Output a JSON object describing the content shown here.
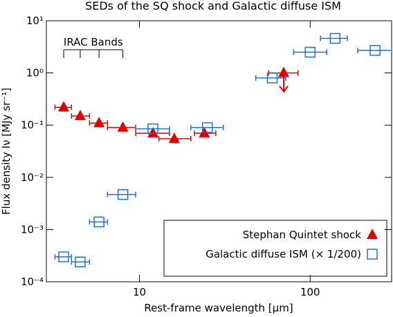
{
  "chart_data": {
    "type": "scatter",
    "title": "SEDs of the SQ shock and Galactic diffuse ISM",
    "x_label": "Rest-frame wavelength [μm]",
    "y_label": "Flux density Iν [MJy sr⁻¹]",
    "annotation": "IRAC Bands",
    "log_x": true,
    "log_y": true,
    "xlim": [
      2.85,
      300
    ],
    "ylim": [
      0.0001,
      10
    ],
    "xticks": [
      10,
      100
    ],
    "yticks": [
      {
        "value": 0.0001,
        "label": "10⁻⁴"
      },
      {
        "value": 0.001,
        "label": "10⁻³"
      },
      {
        "value": 0.01,
        "label": "10⁻²"
      },
      {
        "value": 0.1,
        "label": "10⁻¹"
      },
      {
        "value": 1,
        "label": "10⁰"
      },
      {
        "value": 10,
        "label": "10¹"
      }
    ],
    "legend": "lower right",
    "series": [
      {
        "name": "Stephan Quintet shock",
        "color": "#e00000",
        "marker": "triangle",
        "x": [
          3.6,
          4.5,
          5.8,
          8.0,
          12,
          16,
          24,
          70
        ],
        "x_lo": [
          3.2,
          4.0,
          5.1,
          6.5,
          9.5,
          13,
          21,
          57
        ],
        "x_hi": [
          4.0,
          5.1,
          6.5,
          9.5,
          15,
          20,
          28,
          85
        ],
        "values": [
          0.22,
          0.15,
          0.11,
          0.09,
          0.07,
          0.055,
          0.07,
          1.0
        ],
        "upper_limit": [
          false,
          false,
          false,
          false,
          false,
          false,
          false,
          true
        ]
      },
      {
        "name": "Galactic diffuse ISM (× 1/200)",
        "color": "#1e6fd9",
        "marker": "square",
        "x": [
          3.6,
          4.5,
          5.8,
          8.0,
          12,
          25,
          60,
          100,
          140,
          240
        ],
        "x_lo": [
          3.2,
          4.0,
          5.1,
          6.5,
          9.5,
          20,
          48,
          80,
          115,
          190
        ],
        "x_hi": [
          4.0,
          5.1,
          6.5,
          9.5,
          15,
          31,
          72,
          125,
          165,
          300
        ],
        "values": [
          0.0003,
          0.00024,
          0.0014,
          0.0047,
          0.085,
          0.09,
          0.8,
          2.5,
          4.6,
          2.7
        ]
      }
    ]
  }
}
